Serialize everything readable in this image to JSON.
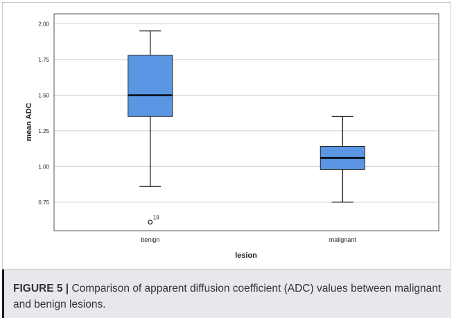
{
  "chart_data": {
    "type": "boxplot",
    "xlabel": "lesion",
    "ylabel": "mean ADC",
    "ylim": [
      0.55,
      2.07
    ],
    "yticks": [
      "0.75",
      "1.00",
      "1.25",
      "1.50",
      "1.75",
      "2.00"
    ],
    "grid": true,
    "box_color": "#5a96e3",
    "groups": [
      {
        "category": "benign",
        "whisker_low": 0.86,
        "q1": 1.35,
        "median": 1.5,
        "q3": 1.78,
        "whisker_high": 1.95,
        "outliers": [
          {
            "value": 0.61,
            "label": "19"
          }
        ]
      },
      {
        "category": "malignant",
        "whisker_low": 0.75,
        "q1": 0.98,
        "median": 1.06,
        "q3": 1.14,
        "whisker_high": 1.35,
        "outliers": []
      }
    ]
  },
  "caption": {
    "figure_label": "FIGURE 5 |",
    "text": " Comparison of apparent diffusion coefficient (ADC) values between malignant and benign lesions."
  }
}
